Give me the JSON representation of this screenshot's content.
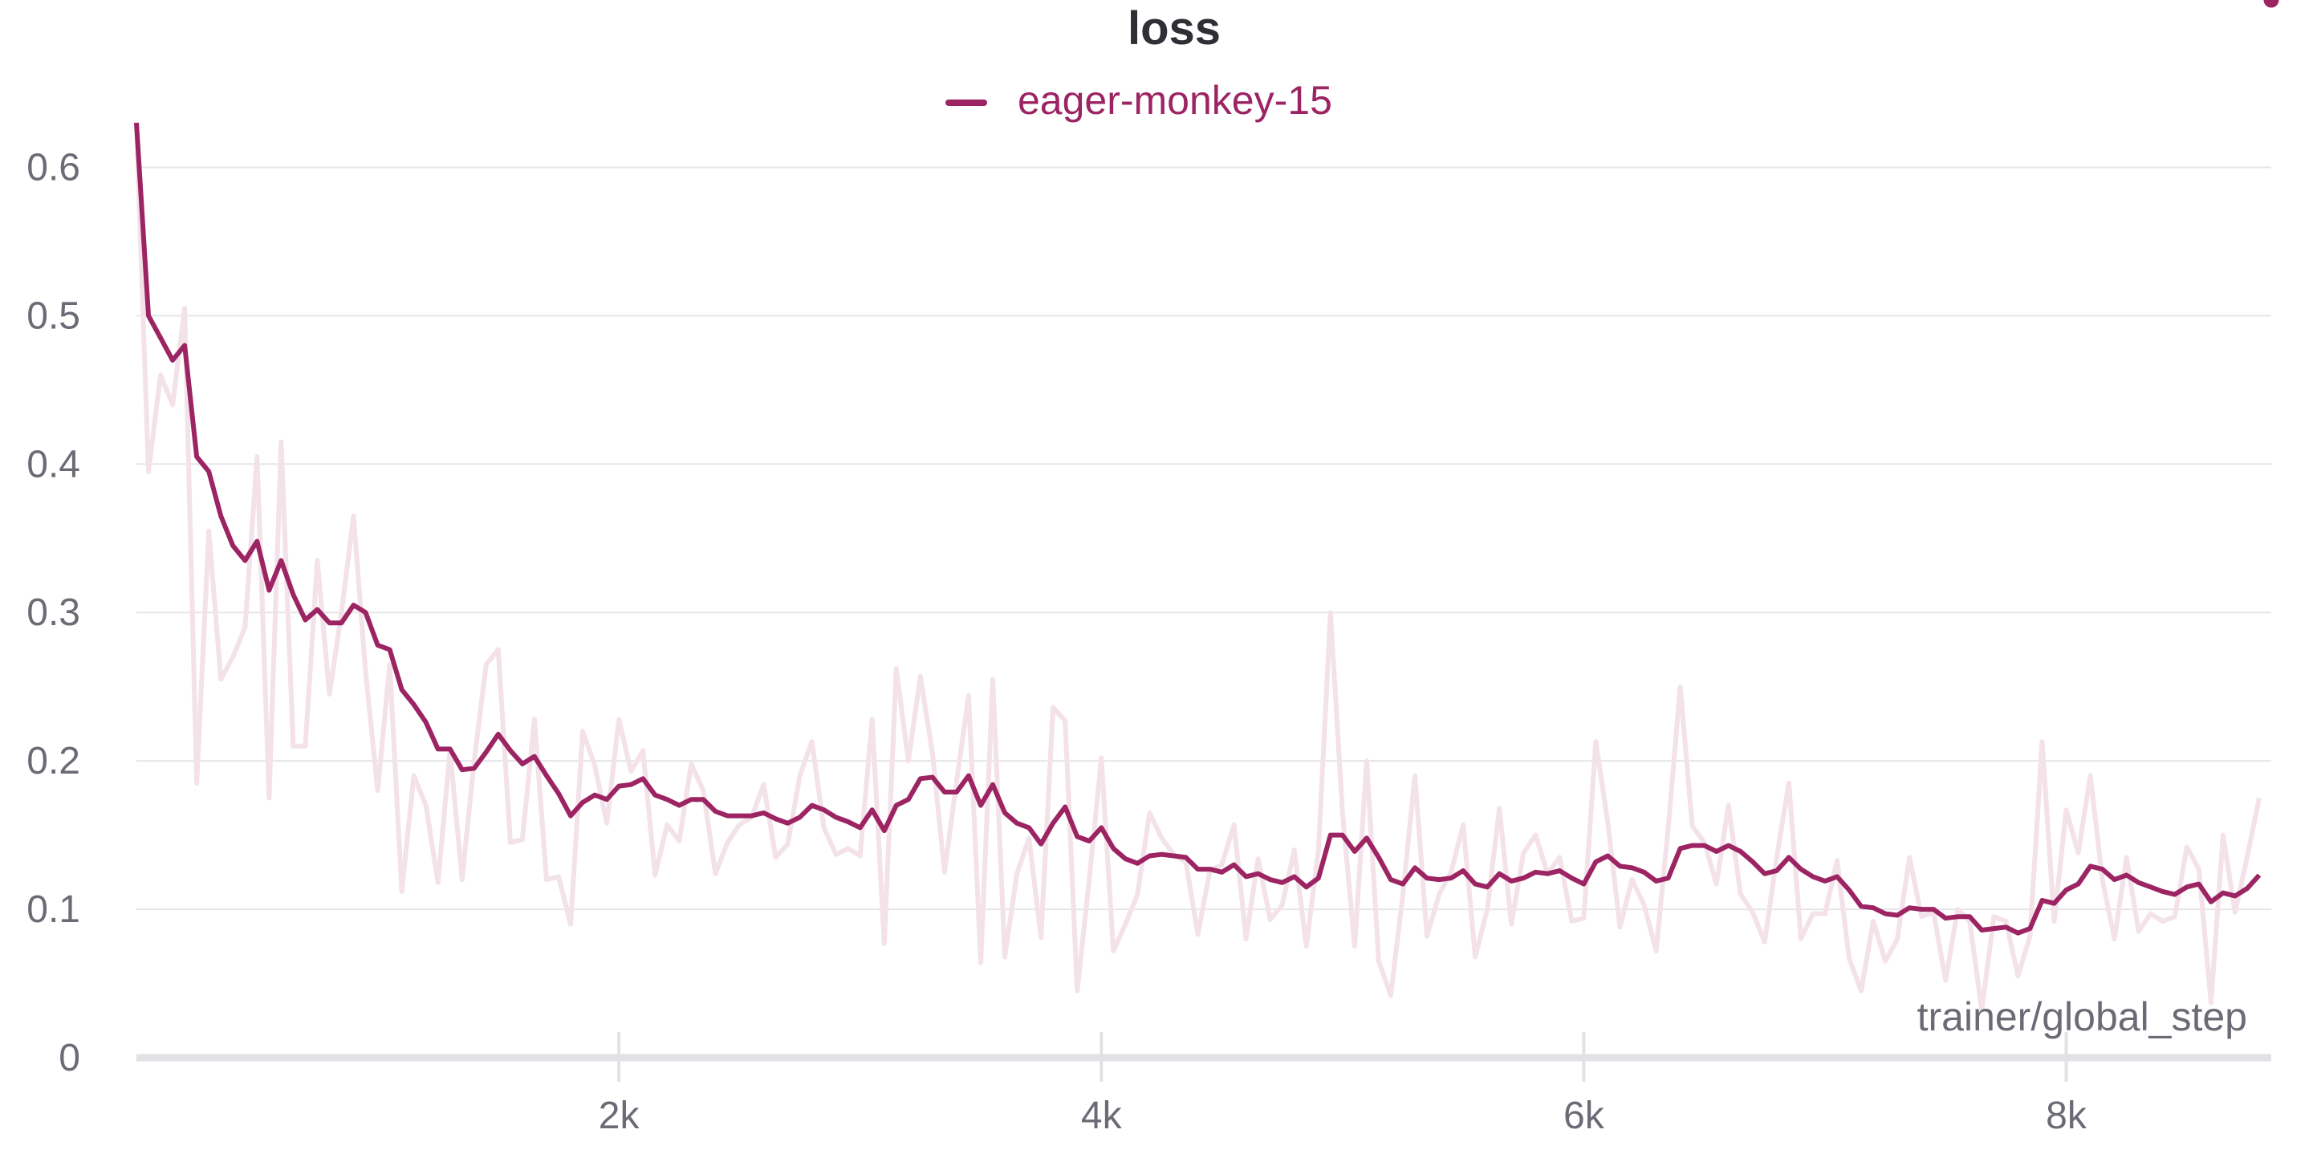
{
  "chart_data": {
    "type": "line",
    "title": "loss",
    "xlabel": "trainer/global_step",
    "ylabel": "",
    "xlim": [
      0,
      8850
    ],
    "ylim": [
      0,
      0.65
    ],
    "x_ticks": [
      {
        "value": 2000,
        "label": "2k"
      },
      {
        "value": 4000,
        "label": "4k"
      },
      {
        "value": 6000,
        "label": "6k"
      },
      {
        "value": 8000,
        "label": "8k"
      }
    ],
    "y_ticks": [
      {
        "value": 0,
        "label": "0"
      },
      {
        "value": 0.1,
        "label": "0.1"
      },
      {
        "value": 0.2,
        "label": "0.2"
      },
      {
        "value": 0.3,
        "label": "0.3"
      },
      {
        "value": 0.4,
        "label": "0.4"
      },
      {
        "value": 0.5,
        "label": "0.5"
      },
      {
        "value": 0.6,
        "label": "0.6"
      }
    ],
    "grid": true,
    "legend_position": "top-center",
    "series": [
      {
        "name": "eager-monkey-15",
        "color": "#9c2463",
        "raw_color": "#f3e2e9",
        "x": [
          0,
          50,
          100,
          150,
          200,
          250,
          300,
          350,
          400,
          450,
          500,
          550,
          600,
          650,
          700,
          750,
          800,
          850,
          900,
          950,
          1000,
          1050,
          1100,
          1150,
          1200,
          1250,
          1300,
          1350,
          1400,
          1450,
          1500,
          1550,
          1600,
          1650,
          1700,
          1750,
          1800,
          1850,
          1900,
          1950,
          2000,
          2050,
          2100,
          2150,
          2200,
          2250,
          2300,
          2350,
          2400,
          2450,
          2500,
          2550,
          2600,
          2650,
          2700,
          2750,
          2800,
          2850,
          2900,
          2950,
          3000,
          3050,
          3100,
          3150,
          3200,
          3250,
          3300,
          3350,
          3400,
          3450,
          3500,
          3550,
          3600,
          3650,
          3700,
          3750,
          3800,
          3850,
          3900,
          3950,
          4000,
          4050,
          4100,
          4150,
          4200,
          4250,
          4300,
          4350,
          4400,
          4450,
          4500,
          4550,
          4600,
          4650,
          4700,
          4750,
          4800,
          4850,
          4900,
          4950,
          5000,
          5050,
          5100,
          5150,
          5200,
          5250,
          5300,
          5350,
          5400,
          5450,
          5500,
          5550,
          5600,
          5650,
          5700,
          5750,
          5800,
          5850,
          5900,
          5950,
          6000,
          6050,
          6100,
          6150,
          6200,
          6250,
          6300,
          6350,
          6400,
          6450,
          6500,
          6550,
          6600,
          6650,
          6700,
          6750,
          6800,
          6850,
          6900,
          6950,
          7000,
          7050,
          7100,
          7150,
          7200,
          7250,
          7300,
          7350,
          7400,
          7450,
          7500,
          7550,
          7600,
          7650,
          7700,
          7750,
          7800,
          7850,
          7900,
          7950,
          8000,
          8050,
          8100,
          8150,
          8200,
          8250,
          8300,
          8350,
          8400,
          8450,
          8500,
          8550,
          8600,
          8650,
          8700,
          8750,
          8800,
          8850
        ],
        "smoothed": [
          0.63,
          0.5,
          0.485,
          0.47,
          0.48,
          0.405,
          0.395,
          0.365,
          0.345,
          0.335,
          0.348,
          0.315,
          0.335,
          0.312,
          0.295,
          0.302,
          0.293,
          0.293,
          0.305,
          0.3,
          0.278,
          0.275,
          0.248,
          0.238,
          0.226,
          0.208,
          0.208,
          0.194,
          0.195,
          0.206,
          0.218,
          0.207,
          0.198,
          0.203,
          0.19,
          0.178,
          0.163,
          0.172,
          0.177,
          0.174,
          0.183,
          0.184,
          0.188,
          0.177,
          0.174,
          0.17,
          0.174,
          0.174,
          0.166,
          0.163,
          0.163,
          0.163,
          0.165,
          0.161,
          0.158,
          0.162,
          0.17,
          0.167,
          0.162,
          0.159,
          0.155,
          0.167,
          0.153,
          0.17,
          0.174,
          0.188,
          0.189,
          0.179,
          0.179,
          0.19,
          0.17,
          0.184,
          0.165,
          0.158,
          0.155,
          0.144,
          0.158,
          0.169,
          0.149,
          0.146,
          0.155,
          0.141,
          0.134,
          0.131,
          0.136,
          0.137,
          0.136,
          0.135,
          0.127,
          0.127,
          0.125,
          0.13,
          0.122,
          0.124,
          0.12,
          0.118,
          0.122,
          0.115,
          0.121,
          0.15,
          0.15,
          0.139,
          0.148,
          0.135,
          0.12,
          0.117,
          0.128,
          0.121,
          0.12,
          0.121,
          0.126,
          0.117,
          0.115,
          0.124,
          0.119,
          0.121,
          0.125,
          0.124,
          0.126,
          0.121,
          0.117,
          0.132,
          0.136,
          0.129,
          0.128,
          0.125,
          0.119,
          0.121,
          0.141,
          0.143,
          0.143,
          0.139,
          0.143,
          0.139,
          0.132,
          0.124,
          0.126,
          0.135,
          0.127,
          0.122,
          0.119,
          0.122,
          0.113,
          0.102,
          0.101,
          0.097,
          0.096,
          0.101,
          0.1,
          0.1,
          0.094,
          0.095,
          0.095,
          0.086,
          0.087,
          0.088,
          0.084,
          0.087,
          0.106,
          0.104,
          0.113,
          0.117,
          0.129,
          0.127,
          0.12,
          0.123,
          0.118,
          0.115,
          0.112,
          0.11,
          0.115,
          0.117,
          0.105,
          0.111,
          0.109,
          0.114,
          0.123
        ],
        "raw": [
          0.63,
          0.395,
          0.46,
          0.44,
          0.505,
          0.185,
          0.355,
          0.255,
          0.27,
          0.29,
          0.405,
          0.175,
          0.415,
          0.21,
          0.21,
          0.335,
          0.245,
          0.3,
          0.365,
          0.26,
          0.18,
          0.265,
          0.112,
          0.19,
          0.17,
          0.118,
          0.207,
          0.12,
          0.2,
          0.265,
          0.275,
          0.145,
          0.147,
          0.228,
          0.12,
          0.122,
          0.09,
          0.22,
          0.197,
          0.158,
          0.228,
          0.193,
          0.207,
          0.123,
          0.157,
          0.146,
          0.198,
          0.18,
          0.124,
          0.145,
          0.157,
          0.162,
          0.184,
          0.135,
          0.144,
          0.19,
          0.213,
          0.155,
          0.137,
          0.141,
          0.136,
          0.228,
          0.077,
          0.262,
          0.2,
          0.257,
          0.205,
          0.125,
          0.186,
          0.244,
          0.064,
          0.255,
          0.068,
          0.124,
          0.148,
          0.081,
          0.236,
          0.227,
          0.045,
          0.12,
          0.202,
          0.072,
          0.09,
          0.11,
          0.165,
          0.148,
          0.137,
          0.132,
          0.083,
          0.126,
          0.13,
          0.157,
          0.08,
          0.134,
          0.093,
          0.103,
          0.14,
          0.075,
          0.14,
          0.3,
          0.165,
          0.075,
          0.2,
          0.065,
          0.042,
          0.11,
          0.19,
          0.082,
          0.11,
          0.125,
          0.157,
          0.068,
          0.1,
          0.168,
          0.09,
          0.138,
          0.15,
          0.124,
          0.135,
          0.092,
          0.094,
          0.213,
          0.158,
          0.088,
          0.12,
          0.103,
          0.072,
          0.155,
          0.25,
          0.156,
          0.145,
          0.117,
          0.17,
          0.11,
          0.098,
          0.078,
          0.135,
          0.185,
          0.08,
          0.097,
          0.097,
          0.133,
          0.067,
          0.045,
          0.092,
          0.065,
          0.08,
          0.135,
          0.095,
          0.098,
          0.052,
          0.1,
          0.092,
          0.032,
          0.095,
          0.092,
          0.055,
          0.082,
          0.213,
          0.092,
          0.167,
          0.138,
          0.19,
          0.12,
          0.08,
          0.135,
          0.085,
          0.097,
          0.092,
          0.095,
          0.142,
          0.127,
          0.037,
          0.15,
          0.098,
          0.135,
          0.175
        ]
      }
    ]
  }
}
